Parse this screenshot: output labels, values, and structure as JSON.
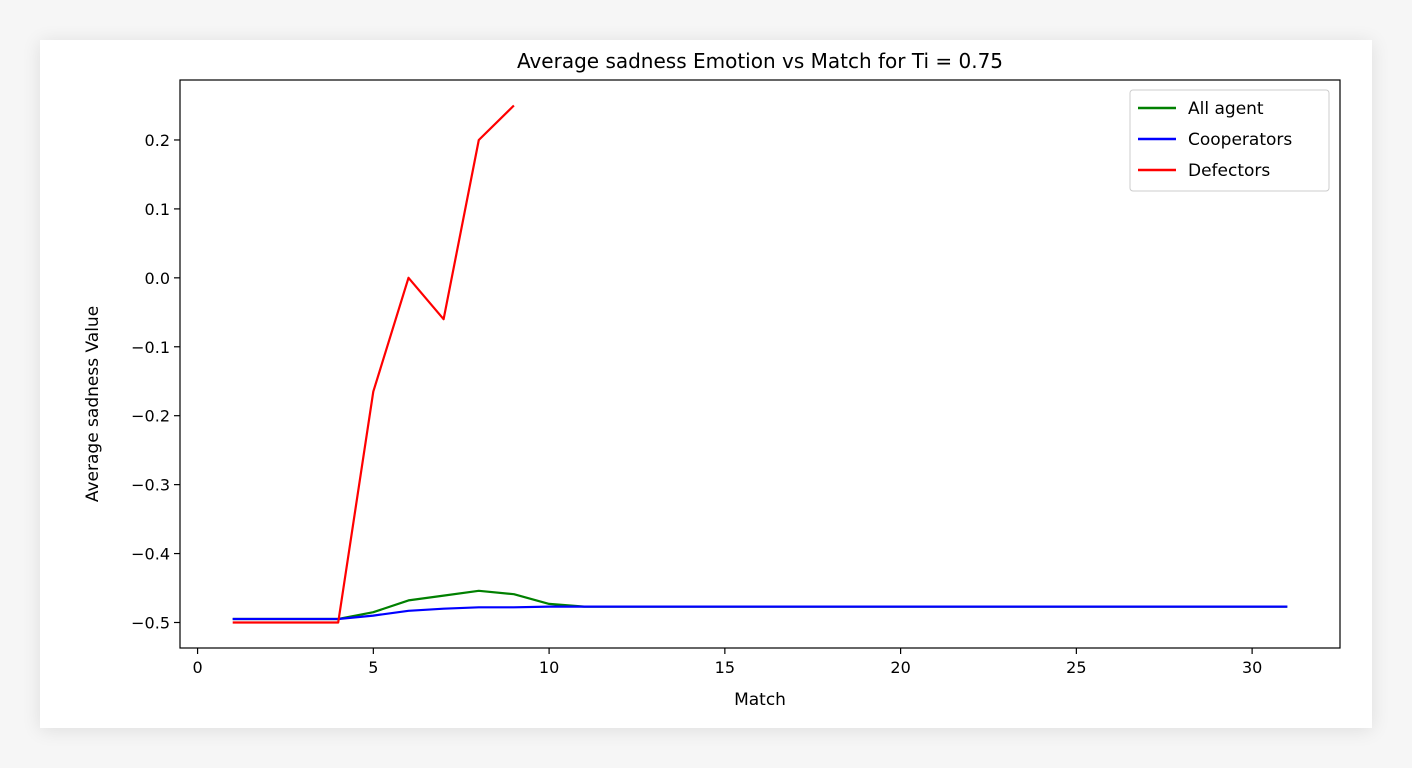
{
  "chart_data": {
    "type": "line",
    "title": "Average sadness Emotion vs Match for Ti = 0.75",
    "xlabel": "Match",
    "ylabel": "Average sadness Value",
    "xlim": [
      -0.5,
      32.5
    ],
    "ylim": [
      -0.537,
      0.287
    ],
    "x_ticks": [
      0,
      5,
      10,
      15,
      20,
      25,
      30
    ],
    "x_tick_labels": [
      "0",
      "5",
      "10",
      "15",
      "20",
      "25",
      "30"
    ],
    "y_ticks": [
      -0.5,
      -0.4,
      -0.3,
      -0.2,
      -0.1,
      0.0,
      0.1,
      0.2
    ],
    "y_tick_labels": [
      "−0.5",
      "−0.4",
      "−0.3",
      "−0.2",
      "−0.1",
      "0.0",
      "0.1",
      "0.2"
    ],
    "grid": false,
    "legend_position": "upper right",
    "series": [
      {
        "name": "All agent",
        "color": "#008000",
        "x": [
          1,
          2,
          3,
          4,
          5,
          6,
          7,
          8,
          9,
          10,
          11,
          12,
          13,
          14,
          15,
          16,
          17,
          18,
          19,
          20,
          21,
          22,
          23,
          24,
          25,
          26,
          27,
          28,
          29,
          30,
          31
        ],
        "y": [
          -0.495,
          -0.495,
          -0.495,
          -0.495,
          -0.485,
          -0.468,
          -0.461,
          -0.454,
          -0.459,
          -0.473,
          -0.477,
          -0.477,
          -0.477,
          -0.477,
          -0.477,
          -0.477,
          -0.477,
          -0.477,
          -0.477,
          -0.477,
          -0.477,
          -0.477,
          -0.477,
          -0.477,
          -0.477,
          -0.477,
          -0.477,
          -0.477,
          -0.477,
          -0.477,
          -0.477
        ]
      },
      {
        "name": "Cooperators",
        "color": "#0000ff",
        "x": [
          1,
          2,
          3,
          4,
          5,
          6,
          7,
          8,
          9,
          10,
          11,
          12,
          13,
          14,
          15,
          16,
          17,
          18,
          19,
          20,
          21,
          22,
          23,
          24,
          25,
          26,
          27,
          28,
          29,
          30,
          31
        ],
        "y": [
          -0.495,
          -0.495,
          -0.495,
          -0.495,
          -0.49,
          -0.483,
          -0.48,
          -0.478,
          -0.478,
          -0.477,
          -0.477,
          -0.477,
          -0.477,
          -0.477,
          -0.477,
          -0.477,
          -0.477,
          -0.477,
          -0.477,
          -0.477,
          -0.477,
          -0.477,
          -0.477,
          -0.477,
          -0.477,
          -0.477,
          -0.477,
          -0.477,
          -0.477,
          -0.477,
          -0.477
        ]
      },
      {
        "name": "Defectors",
        "color": "#ff0000",
        "x": [
          1,
          2,
          3,
          4,
          5,
          6,
          7,
          8,
          9
        ],
        "y": [
          -0.5,
          -0.5,
          -0.5,
          -0.5,
          -0.165,
          0.0,
          -0.06,
          0.2,
          0.25
        ]
      }
    ]
  }
}
